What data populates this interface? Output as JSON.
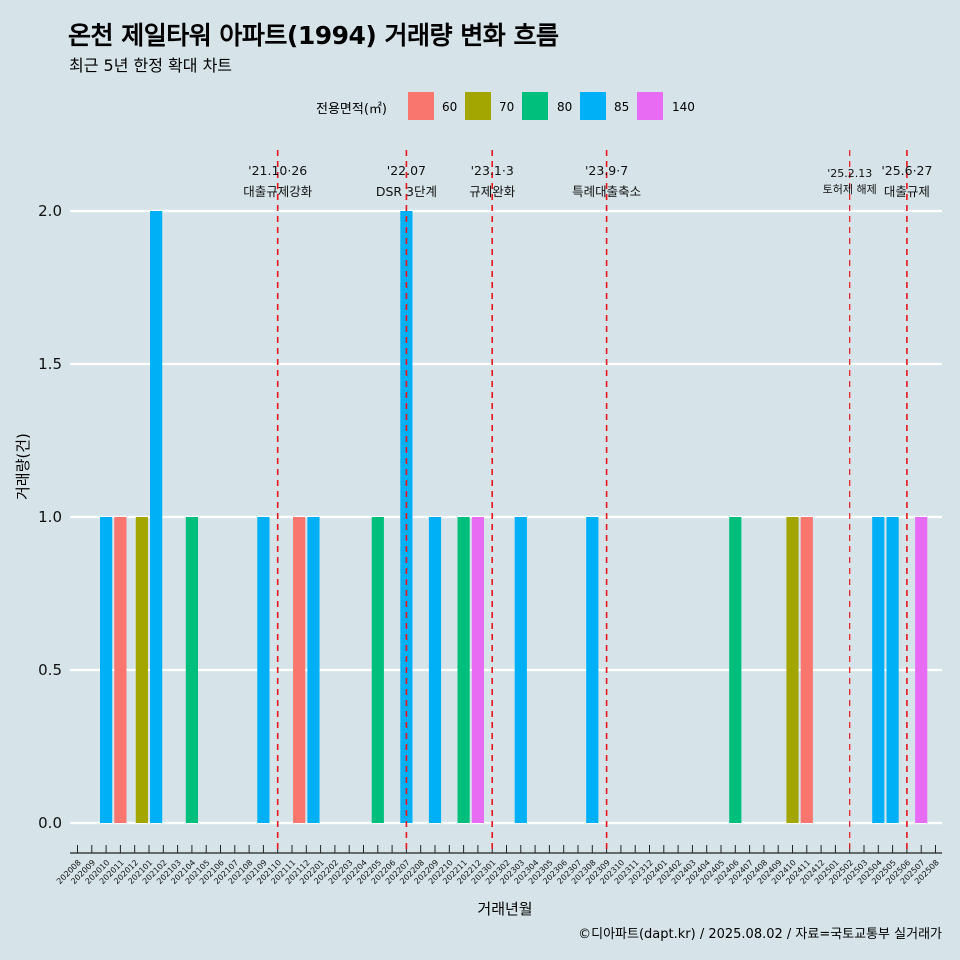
{
  "title": "온천 제일타워 아파트(1994) 거래량 변화 흐름",
  "subtitle": "최근 5년 한정 확대 차트",
  "caption": "©디아파트(dapt.kr) / 2025.08.02 / 자료=국토교통부 실거래가",
  "legend": {
    "title": "전용면적(㎡)",
    "items": [
      {
        "label": "60",
        "color": "#F8766D"
      },
      {
        "label": "70",
        "color": "#A3A500"
      },
      {
        "label": "80",
        "color": "#00BF7D"
      },
      {
        "label": "85",
        "color": "#00B0F6"
      },
      {
        "label": "140",
        "color": "#E76BF3"
      }
    ]
  },
  "chart_data": {
    "type": "bar",
    "xlabel": "거래년월",
    "ylabel": "거래량(건)",
    "ylim": [
      0,
      2.0
    ],
    "yticks": [
      "0.0",
      "0.5",
      "1.0",
      "1.5",
      "2.0"
    ],
    "grid": true,
    "legend_position": "top",
    "categories": [
      "202008",
      "202009",
      "202010",
      "202011",
      "202012",
      "202101",
      "202102",
      "202103",
      "202104",
      "202105",
      "202106",
      "202107",
      "202108",
      "202109",
      "202110",
      "202111",
      "202112",
      "202201",
      "202202",
      "202203",
      "202204",
      "202205",
      "202206",
      "202207",
      "202208",
      "202209",
      "202210",
      "202211",
      "202212",
      "202301",
      "202302",
      "202303",
      "202304",
      "202305",
      "202306",
      "202307",
      "202308",
      "202309",
      "202310",
      "202311",
      "202312",
      "202401",
      "202402",
      "202403",
      "202404",
      "202405",
      "202406",
      "202407",
      "202408",
      "202409",
      "202410",
      "202411",
      "202412",
      "202501",
      "202502",
      "202503",
      "202504",
      "202505",
      "202506",
      "202507",
      "202508"
    ],
    "series": [
      {
        "name": "60",
        "color": "#F8766D",
        "points": [
          {
            "x": "202011",
            "y": 1
          },
          {
            "x": "202112",
            "y": 1
          },
          {
            "x": "202411",
            "y": 1
          }
        ]
      },
      {
        "name": "70",
        "color": "#A3A500",
        "points": [
          {
            "x": "202101",
            "y": 1
          },
          {
            "x": "202410",
            "y": 1
          }
        ]
      },
      {
        "name": "80",
        "color": "#00BF7D",
        "points": [
          {
            "x": "202104",
            "y": 1
          },
          {
            "x": "202205",
            "y": 1
          },
          {
            "x": "202211",
            "y": 1
          },
          {
            "x": "202406",
            "y": 1
          }
        ]
      },
      {
        "name": "85",
        "color": "#00B0F6",
        "points": [
          {
            "x": "202010",
            "y": 1
          },
          {
            "x": "202101",
            "y": 2
          },
          {
            "x": "202109",
            "y": 1
          },
          {
            "x": "202112",
            "y": 1
          },
          {
            "x": "202207",
            "y": 2
          },
          {
            "x": "202209",
            "y": 1
          },
          {
            "x": "202303",
            "y": 1
          },
          {
            "x": "202308",
            "y": 1
          },
          {
            "x": "202504",
            "y": 1
          },
          {
            "x": "202505",
            "y": 1
          }
        ]
      },
      {
        "name": "140",
        "color": "#E76BF3",
        "points": [
          {
            "x": "202212",
            "y": 1
          },
          {
            "x": "202507",
            "y": 1
          }
        ]
      }
    ],
    "annotations": [
      {
        "x": "202110",
        "line1": "'21.10·26",
        "line2": "대출규제강화"
      },
      {
        "x": "202207",
        "line1": "'22.07",
        "line2": "DSR 3단계"
      },
      {
        "x": "202301",
        "line1": "'23.1·3",
        "line2": "규제완화"
      },
      {
        "x": "202309",
        "line1": "'23.9·7",
        "line2": "특례대출축소"
      },
      {
        "x": "202502",
        "line1": "'25.2.13",
        "line2": "토허제 해제"
      },
      {
        "x": "202506",
        "line1": "'25.6·27",
        "line2": "대출규제"
      }
    ]
  }
}
